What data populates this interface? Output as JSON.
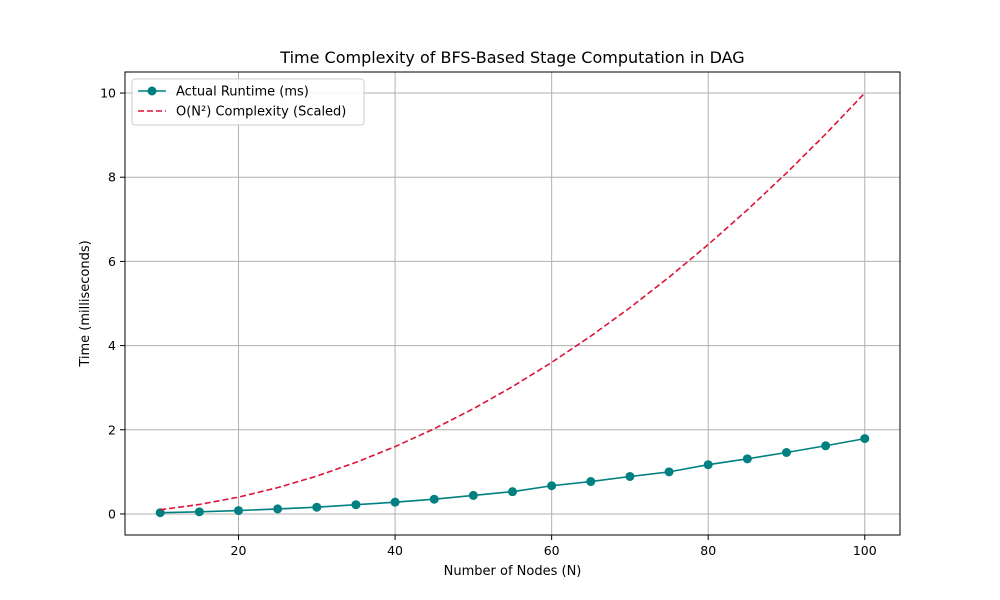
{
  "chart_data": {
    "type": "line",
    "title": "Time Complexity of BFS-Based Stage Computation in DAG",
    "xlabel": "Number of Nodes (N)",
    "ylabel": "Time (milliseconds)",
    "xlim": [
      5.5,
      104.5
    ],
    "ylim": [
      -0.5,
      10.5
    ],
    "xticks": [
      20,
      40,
      60,
      80,
      100
    ],
    "yticks": [
      0,
      2,
      4,
      6,
      8,
      10
    ],
    "grid": true,
    "legend_position": "upper-left",
    "x": [
      10,
      15,
      20,
      25,
      30,
      35,
      40,
      45,
      50,
      55,
      60,
      65,
      70,
      75,
      80,
      85,
      90,
      95,
      100
    ],
    "series": [
      {
        "name": "Actual Runtime (ms)",
        "color": "#008080",
        "style": "solid-with-markers",
        "values": [
          0.03,
          0.05,
          0.08,
          0.12,
          0.16,
          0.22,
          0.28,
          0.35,
          0.44,
          0.53,
          0.67,
          0.77,
          0.89,
          1.0,
          1.17,
          1.31,
          1.46,
          1.62,
          1.79
        ]
      },
      {
        "name": "O(N²) Complexity (Scaled)",
        "color": "#dc143c",
        "style": "dashed",
        "values": [
          0.1,
          0.225,
          0.4,
          0.625,
          0.9,
          1.225,
          1.6,
          2.025,
          2.5,
          3.025,
          3.6,
          4.225,
          4.9,
          5.625,
          6.4,
          7.225,
          8.1,
          9.025,
          10.0
        ]
      }
    ]
  }
}
